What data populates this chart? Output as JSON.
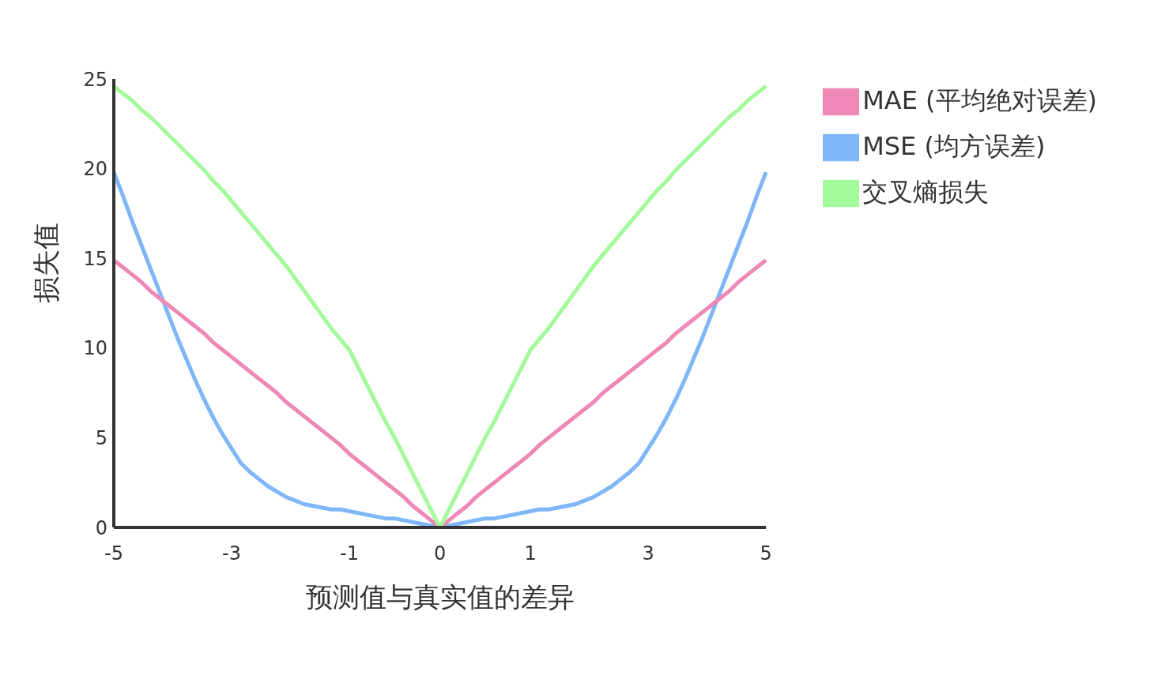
{
  "chart_data": {
    "type": "line",
    "xlabel": "预测值与真实值的差异",
    "ylabel": "损失值",
    "categories": [
      "-5",
      null,
      null,
      null,
      null,
      null,
      null,
      null,
      null,
      null,
      null,
      null,
      null,
      "-3",
      null,
      null,
      null,
      null,
      null,
      null,
      null,
      null,
      null,
      null,
      null,
      null,
      "-1",
      null,
      null,
      null,
      null,
      null,
      null,
      null,
      null,
      null,
      "0",
      null,
      null,
      null,
      null,
      null,
      null,
      null,
      null,
      null,
      "1",
      null,
      null,
      null,
      null,
      null,
      null,
      null,
      null,
      null,
      null,
      null,
      null,
      "3",
      null,
      null,
      null,
      null,
      null,
      null,
      null,
      null,
      null,
      null,
      null,
      null,
      "5"
    ],
    "series": [
      {
        "name": "MSE (均方误差)",
        "color": "#7eb6f8",
        "values": [
          19.8,
          18.5,
          17.1,
          15.8,
          14.5,
          13.2,
          11.9,
          10.6,
          9.4,
          8.2,
          7.1,
          6.1,
          5.2,
          4.4,
          3.6,
          3.1,
          2.7,
          2.3,
          2.0,
          1.7,
          1.5,
          1.3,
          1.2,
          1.1,
          1.0,
          1.0,
          0.9,
          0.8,
          0.7,
          0.6,
          0.5,
          0.5,
          0.4,
          0.3,
          0.2,
          0.1,
          0,
          0.1,
          0.2,
          0.3,
          0.4,
          0.5,
          0.5,
          0.6,
          0.7,
          0.8,
          0.9,
          1.0,
          1.0,
          1.1,
          1.2,
          1.3,
          1.5,
          1.7,
          2.0,
          2.3,
          2.7,
          3.1,
          3.6,
          4.4,
          5.2,
          6.1,
          7.1,
          8.2,
          9.4,
          10.6,
          11.9,
          13.2,
          14.5,
          15.8,
          17.1,
          18.5,
          19.8
        ]
      },
      {
        "name": "MAE (平均绝对误差)",
        "color": "#ee88b6",
        "values": [
          14.9,
          14.5,
          14.1,
          13.7,
          13.2,
          12.8,
          12.4,
          12.0,
          11.6,
          11.2,
          10.8,
          10.3,
          9.9,
          9.5,
          9.1,
          8.7,
          8.3,
          7.9,
          7.5,
          7.0,
          6.6,
          6.2,
          5.8,
          5.4,
          5.0,
          4.6,
          4.1,
          3.7,
          3.3,
          2.9,
          2.5,
          2.1,
          1.7,
          1.2,
          0.8,
          0.4,
          0,
          0.4,
          0.8,
          1.2,
          1.7,
          2.1,
          2.5,
          2.9,
          3.3,
          3.7,
          4.1,
          4.6,
          5.0,
          5.4,
          5.8,
          6.2,
          6.6,
          7.0,
          7.5,
          7.9,
          8.3,
          8.7,
          9.1,
          9.5,
          9.9,
          10.3,
          10.8,
          11.2,
          11.6,
          12.0,
          12.4,
          12.8,
          13.2,
          13.7,
          14.1,
          14.5,
          14.9
        ]
      },
      {
        "name": "交叉熵损失",
        "color": "#a3fa9a",
        "values": [
          24.6,
          24.2,
          23.8,
          23.3,
          22.9,
          22.4,
          21.9,
          21.4,
          20.9,
          20.4,
          19.9,
          19.3,
          18.8,
          18.2,
          17.6,
          17.0,
          16.4,
          15.8,
          15.2,
          14.6,
          13.9,
          13.2,
          12.5,
          11.8,
          11.1,
          10.5,
          9.9,
          8.9,
          7.9,
          6.9,
          5.9,
          5.0,
          4.0,
          3.0,
          2.0,
          1.0,
          0,
          1.0,
          2.0,
          3.0,
          4.0,
          5.0,
          5.9,
          6.9,
          7.9,
          8.9,
          9.9,
          10.5,
          11.1,
          11.8,
          12.5,
          13.2,
          13.9,
          14.6,
          15.2,
          15.8,
          16.4,
          17.0,
          17.6,
          18.2,
          18.8,
          19.3,
          19.9,
          20.4,
          20.9,
          21.4,
          21.9,
          22.4,
          22.9,
          23.3,
          23.8,
          24.2,
          24.6
        ]
      }
    ],
    "ylim": [
      0,
      25
    ],
    "yticks": [
      0,
      5,
      10,
      15,
      20,
      25
    ],
    "grid": false,
    "legend": "top right",
    "marker": "none",
    "line_style": "solid"
  }
}
